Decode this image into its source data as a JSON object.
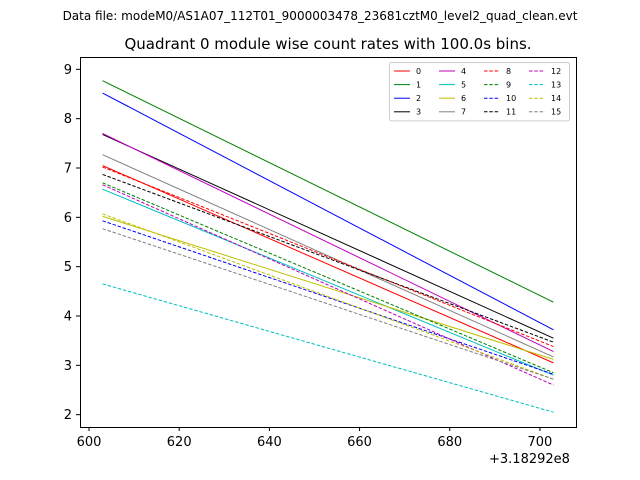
{
  "suptitle": "Data file: modeM0/AS1A07_112T01_9000003478_23681cztM0_level2_quad_clean.evt",
  "chart_data": {
    "type": "line",
    "title": "Quadrant 0 module wise count rates with 100.0s bins.",
    "xlabel": "",
    "ylabel": "",
    "x_offset_label": "+3.18292e8",
    "xlim": [
      598,
      708
    ],
    "ylim": [
      1.75,
      9.25
    ],
    "xticks": [
      600,
      620,
      640,
      660,
      680,
      700
    ],
    "yticks": [
      2,
      3,
      4,
      5,
      6,
      7,
      8,
      9
    ],
    "xticklabels": [
      "600",
      "620",
      "640",
      "660",
      "680",
      "700"
    ],
    "yticklabels": [
      "2",
      "3",
      "4",
      "5",
      "6",
      "7",
      "8",
      "9"
    ],
    "legend_position": "top-right",
    "legend_columns": 4,
    "grid": false,
    "series": [
      {
        "name": "0",
        "x": [
          603,
          703
        ],
        "values": [
          7.05,
          3.05
        ],
        "color": "#ff0000",
        "dash": "solid"
      },
      {
        "name": "1",
        "x": [
          603,
          703
        ],
        "values": [
          8.77,
          4.28
        ],
        "color": "#008000",
        "dash": "solid"
      },
      {
        "name": "2",
        "x": [
          603,
          703
        ],
        "values": [
          8.52,
          3.72
        ],
        "color": "#0000ff",
        "dash": "solid"
      },
      {
        "name": "3",
        "x": [
          603,
          703
        ],
        "values": [
          7.68,
          3.55
        ],
        "color": "#000000",
        "dash": "solid"
      },
      {
        "name": "4",
        "x": [
          603,
          703
        ],
        "values": [
          7.7,
          3.28
        ],
        "color": "#bf00bf",
        "dash": "solid"
      },
      {
        "name": "5",
        "x": [
          603,
          703
        ],
        "values": [
          6.57,
          2.8
        ],
        "color": "#00bfbf",
        "dash": "solid"
      },
      {
        "name": "6",
        "x": [
          603,
          703
        ],
        "values": [
          6.02,
          3.12
        ],
        "color": "#bfbf00",
        "dash": "solid"
      },
      {
        "name": "7",
        "x": [
          603,
          703
        ],
        "values": [
          7.27,
          3.17
        ],
        "color": "#808080",
        "dash": "solid"
      },
      {
        "name": "8",
        "x": [
          603,
          703
        ],
        "values": [
          7.02,
          3.38
        ],
        "color": "#ff0000",
        "dash": "dashed"
      },
      {
        "name": "9",
        "x": [
          603,
          703
        ],
        "values": [
          6.7,
          2.85
        ],
        "color": "#008000",
        "dash": "dashed"
      },
      {
        "name": "10",
        "x": [
          603,
          703
        ],
        "values": [
          5.93,
          2.82
        ],
        "color": "#0000ff",
        "dash": "dashed"
      },
      {
        "name": "11",
        "x": [
          603,
          703
        ],
        "values": [
          6.87,
          3.47
        ],
        "color": "#000000",
        "dash": "dashed"
      },
      {
        "name": "12",
        "x": [
          603,
          703
        ],
        "values": [
          6.66,
          2.6
        ],
        "color": "#bf00bf",
        "dash": "dashed"
      },
      {
        "name": "13",
        "x": [
          603,
          703
        ],
        "values": [
          4.65,
          2.05
        ],
        "color": "#00bfbf",
        "dash": "dashed"
      },
      {
        "name": "14",
        "x": [
          603,
          703
        ],
        "values": [
          6.07,
          2.72
        ],
        "color": "#bfbf00",
        "dash": "dashed"
      },
      {
        "name": "15",
        "x": [
          603,
          703
        ],
        "values": [
          5.77,
          2.72
        ],
        "color": "#808080",
        "dash": "dashed"
      }
    ]
  }
}
